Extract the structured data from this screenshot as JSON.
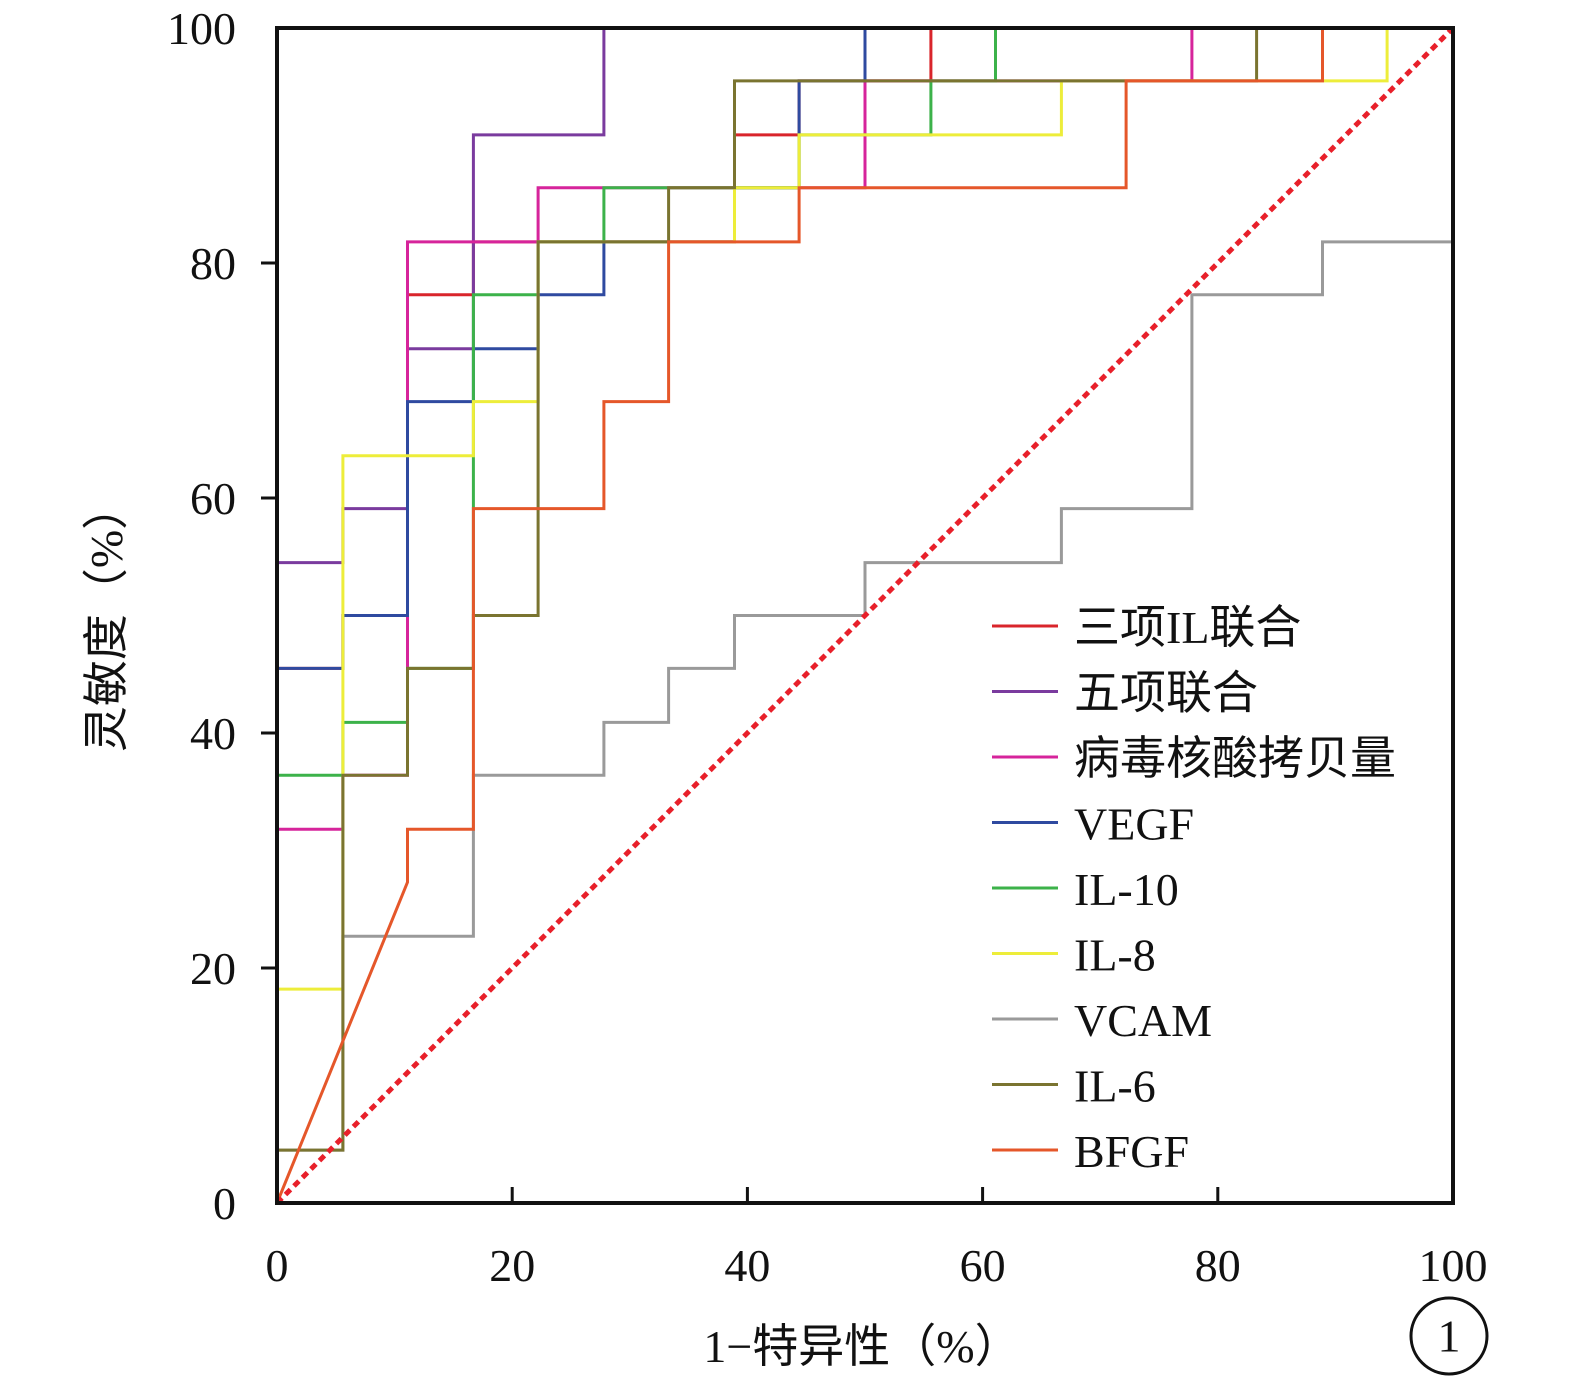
{
  "chart_data": {
    "type": "line",
    "xlabel": "1−特异性（%）",
    "ylabel": "灵敏度（%）",
    "xlim": [
      0,
      100
    ],
    "ylim": [
      0,
      100
    ],
    "x_ticks": [
      0,
      20,
      40,
      60,
      80,
      100
    ],
    "y_ticks": [
      0,
      20,
      40,
      60,
      80,
      100
    ],
    "grid": false,
    "legend_position": "bottom-right",
    "panel_number": "1",
    "reference_line": {
      "color": "#e8202a",
      "style": "dotted",
      "points": [
        [
          0,
          0
        ],
        [
          100,
          100
        ]
      ]
    },
    "series": [
      {
        "name": "三项IL联合",
        "color": "#d9252b",
        "points": [
          [
            0,
            0
          ],
          [
            0,
            45.5
          ],
          [
            5.6,
            45.5
          ],
          [
            5.6,
            50
          ],
          [
            11.1,
            50
          ],
          [
            11.1,
            77.3
          ],
          [
            16.7,
            77.3
          ],
          [
            16.7,
            81.8
          ],
          [
            38.9,
            81.8
          ],
          [
            38.9,
            90.9
          ],
          [
            44.4,
            90.9
          ],
          [
            44.4,
            95.5
          ],
          [
            55.6,
            95.5
          ],
          [
            55.6,
            100
          ],
          [
            100,
            100
          ]
        ]
      },
      {
        "name": "五项联合",
        "color": "#7a3b9e",
        "points": [
          [
            0,
            0
          ],
          [
            0,
            54.5
          ],
          [
            5.6,
            54.5
          ],
          [
            5.6,
            59.1
          ],
          [
            11.1,
            59.1
          ],
          [
            11.1,
            72.7
          ],
          [
            16.7,
            72.7
          ],
          [
            16.7,
            90.9
          ],
          [
            27.8,
            90.9
          ],
          [
            27.8,
            100
          ],
          [
            100,
            100
          ]
        ]
      },
      {
        "name": "病毒核酸拷贝量",
        "color": "#d6249b",
        "points": [
          [
            0,
            0
          ],
          [
            0,
            31.8
          ],
          [
            5.6,
            31.8
          ],
          [
            5.6,
            36.4
          ],
          [
            11.1,
            36.4
          ],
          [
            11.1,
            81.8
          ],
          [
            22.2,
            81.8
          ],
          [
            22.2,
            86.4
          ],
          [
            50,
            86.4
          ],
          [
            50,
            95.5
          ],
          [
            77.8,
            95.5
          ],
          [
            77.8,
            100
          ],
          [
            100,
            100
          ]
        ]
      },
      {
        "name": "VEGF",
        "color": "#2f4aa0",
        "points": [
          [
            0,
            0
          ],
          [
            0,
            45.5
          ],
          [
            5.6,
            45.5
          ],
          [
            5.6,
            50
          ],
          [
            11.1,
            50
          ],
          [
            11.1,
            68.2
          ],
          [
            16.7,
            68.2
          ],
          [
            16.7,
            72.7
          ],
          [
            22.2,
            72.7
          ],
          [
            22.2,
            77.3
          ],
          [
            27.8,
            77.3
          ],
          [
            27.8,
            81.8
          ],
          [
            38.9,
            81.8
          ],
          [
            38.9,
            86.4
          ],
          [
            44.4,
            86.4
          ],
          [
            44.4,
            95.5
          ],
          [
            50,
            95.5
          ],
          [
            50,
            100
          ],
          [
            100,
            100
          ]
        ]
      },
      {
        "name": "IL-10",
        "color": "#3cb24a",
        "points": [
          [
            0,
            0
          ],
          [
            0,
            36.4
          ],
          [
            5.6,
            36.4
          ],
          [
            5.6,
            40.9
          ],
          [
            11.1,
            40.9
          ],
          [
            11.1,
            45.5
          ],
          [
            16.7,
            45.5
          ],
          [
            16.7,
            77.3
          ],
          [
            22.2,
            77.3
          ],
          [
            22.2,
            81.8
          ],
          [
            27.8,
            81.8
          ],
          [
            27.8,
            86.4
          ],
          [
            44.4,
            86.4
          ],
          [
            44.4,
            90.9
          ],
          [
            55.6,
            90.9
          ],
          [
            55.6,
            95.5
          ],
          [
            61.1,
            95.5
          ],
          [
            61.1,
            100
          ],
          [
            100,
            100
          ]
        ]
      },
      {
        "name": "IL-8",
        "color": "#eded3a",
        "points": [
          [
            0,
            0
          ],
          [
            0,
            18.2
          ],
          [
            5.6,
            18.2
          ],
          [
            5.6,
            63.6
          ],
          [
            16.7,
            63.6
          ],
          [
            16.7,
            68.2
          ],
          [
            22.2,
            68.2
          ],
          [
            22.2,
            81.8
          ],
          [
            38.9,
            81.8
          ],
          [
            38.9,
            86.4
          ],
          [
            44.4,
            86.4
          ],
          [
            44.4,
            90.9
          ],
          [
            66.7,
            90.9
          ],
          [
            66.7,
            95.5
          ],
          [
            94.4,
            95.5
          ],
          [
            94.4,
            100
          ],
          [
            100,
            100
          ]
        ]
      },
      {
        "name": "VCAM",
        "color": "#9a9a9a",
        "points": [
          [
            0,
            0
          ],
          [
            0,
            4.5
          ],
          [
            5.6,
            4.5
          ],
          [
            5.6,
            22.7
          ],
          [
            16.7,
            22.7
          ],
          [
            16.7,
            36.4
          ],
          [
            27.8,
            36.4
          ],
          [
            27.8,
            40.9
          ],
          [
            33.3,
            40.9
          ],
          [
            33.3,
            45.5
          ],
          [
            38.9,
            45.5
          ],
          [
            38.9,
            50
          ],
          [
            50,
            50
          ],
          [
            50,
            54.5
          ],
          [
            66.7,
            54.5
          ],
          [
            66.7,
            59.1
          ],
          [
            77.8,
            59.1
          ],
          [
            77.8,
            77.3
          ],
          [
            88.9,
            77.3
          ],
          [
            88.9,
            81.8
          ],
          [
            100,
            81.8
          ]
        ]
      },
      {
        "name": "IL-6",
        "color": "#7a7430",
        "points": [
          [
            0,
            0
          ],
          [
            0,
            4.5
          ],
          [
            5.6,
            4.5
          ],
          [
            5.6,
            36.4
          ],
          [
            11.1,
            36.4
          ],
          [
            11.1,
            45.5
          ],
          [
            16.7,
            45.5
          ],
          [
            16.7,
            50
          ],
          [
            22.2,
            50
          ],
          [
            22.2,
            81.8
          ],
          [
            33.3,
            81.8
          ],
          [
            33.3,
            86.4
          ],
          [
            38.9,
            86.4
          ],
          [
            38.9,
            95.5
          ],
          [
            83.3,
            95.5
          ],
          [
            83.3,
            100
          ],
          [
            100,
            100
          ]
        ]
      },
      {
        "name": "BFGF",
        "color": "#e5572a",
        "points": [
          [
            0,
            0
          ],
          [
            11.1,
            27.3
          ],
          [
            11.1,
            31.8
          ],
          [
            16.7,
            31.8
          ],
          [
            16.7,
            59.1
          ],
          [
            27.8,
            59.1
          ],
          [
            27.8,
            68.2
          ],
          [
            33.3,
            68.2
          ],
          [
            33.3,
            81.8
          ],
          [
            44.4,
            81.8
          ],
          [
            44.4,
            86.4
          ],
          [
            72.2,
            86.4
          ],
          [
            72.2,
            95.5
          ],
          [
            88.9,
            95.5
          ],
          [
            88.9,
            100
          ],
          [
            100,
            100
          ]
        ]
      }
    ]
  }
}
